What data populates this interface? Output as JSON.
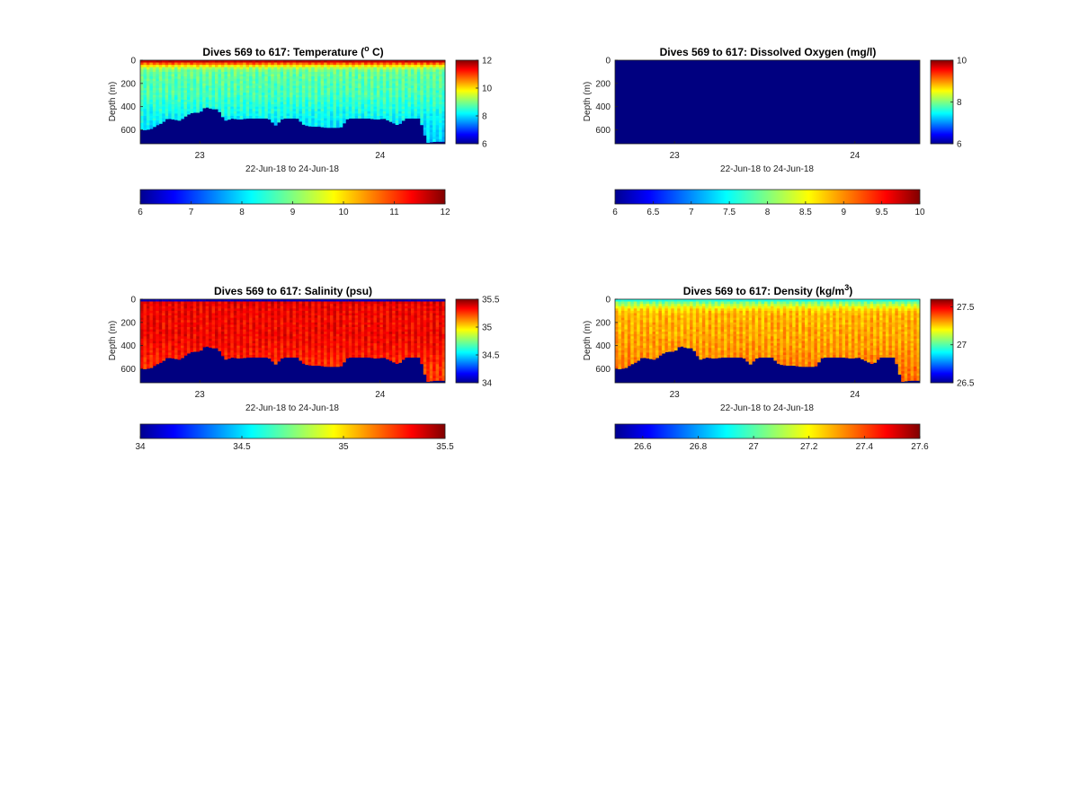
{
  "chart_data": [
    {
      "type": "heatmap",
      "title": "Dives 569 to 617: Temperature (° C)",
      "title_parts": {
        "pre": "Dives 569 to 617: Temperature (",
        "sup": "o",
        "post": " C)"
      },
      "xlabel": "22-Jun-18 to 24-Jun-18",
      "ylabel": "Depth (m)",
      "x_ticks": [
        "23",
        "24"
      ],
      "x_tick_days": [
        23,
        24
      ],
      "x_range_days": [
        22.67,
        24.36
      ],
      "y_ticks": [
        "0",
        "200",
        "400",
        "600"
      ],
      "y_tick_values": [
        0,
        200,
        400,
        600
      ],
      "ylim": [
        0,
        720
      ],
      "y_direction": "reverse",
      "side_colorbar": {
        "ticks": [
          "12",
          "10",
          "8",
          "6"
        ],
        "values": [
          12,
          10,
          8,
          6
        ],
        "range": [
          6,
          12
        ]
      },
      "bottom_colorbar": {
        "ticks": [
          "6",
          "7",
          "8",
          "9",
          "10",
          "11",
          "12"
        ],
        "values": [
          6,
          7,
          8,
          9,
          10,
          11,
          12
        ],
        "range": [
          6,
          12
        ]
      },
      "colormap": "jet",
      "profile": {
        "depths": [
          0,
          20,
          40,
          60,
          80,
          100,
          200,
          300,
          400,
          500,
          600,
          720
        ],
        "values": [
          11.6,
          11.0,
          10.2,
          9.4,
          9.0,
          8.8,
          8.7,
          8.6,
          8.4,
          8.2,
          8.0,
          7.9
        ]
      },
      "surface_value": 11.6,
      "bottom_fill_value": 6
    },
    {
      "type": "heatmap",
      "title": "Dives 569 to 617: Dissolved Oxygen (mg/l)",
      "xlabel": "22-Jun-18 to 24-Jun-18",
      "ylabel": "Depth (m)",
      "x_ticks": [
        "23",
        "24"
      ],
      "x_tick_days": [
        23,
        24
      ],
      "x_range_days": [
        22.67,
        24.36
      ],
      "y_ticks": [
        "0",
        "200",
        "400",
        "600"
      ],
      "y_tick_values": [
        0,
        200,
        400,
        600
      ],
      "ylim": [
        0,
        720
      ],
      "y_direction": "reverse",
      "side_colorbar": {
        "ticks": [
          "10",
          "8",
          "6"
        ],
        "values": [
          10,
          8,
          6
        ],
        "range": [
          6,
          10
        ]
      },
      "bottom_colorbar": {
        "ticks": [
          "6",
          "6.5",
          "7",
          "7.5",
          "8",
          "8.5",
          "9",
          "9.5",
          "10"
        ],
        "values": [
          6,
          6.5,
          7,
          7.5,
          8,
          8.5,
          9,
          9.5,
          10
        ],
        "range": [
          6,
          10
        ]
      },
      "colormap": "jet",
      "uniform_value": 6
    },
    {
      "type": "heatmap",
      "title": "Dives 569 to 617: Salinity (psu)",
      "xlabel": "22-Jun-18 to 24-Jun-18",
      "ylabel": "Depth (m)",
      "x_ticks": [
        "23",
        "24"
      ],
      "x_tick_days": [
        23,
        24
      ],
      "x_range_days": [
        22.67,
        24.36
      ],
      "y_ticks": [
        "0",
        "200",
        "400",
        "600"
      ],
      "y_tick_values": [
        0,
        200,
        400,
        600
      ],
      "ylim": [
        0,
        720
      ],
      "y_direction": "reverse",
      "side_colorbar": {
        "ticks": [
          "35.5",
          "35",
          "34.5",
          "34"
        ],
        "values": [
          35.5,
          35,
          34.5,
          34
        ],
        "range": [
          34,
          35.5
        ]
      },
      "bottom_colorbar": {
        "ticks": [
          "34",
          "34.5",
          "35",
          "35.5"
        ],
        "values": [
          34,
          34.5,
          35,
          35.5
        ],
        "range": [
          34,
          35.5
        ]
      },
      "colormap": "jet",
      "profile": {
        "depths": [
          0,
          30,
          60,
          100,
          200,
          300,
          400,
          500,
          600,
          720
        ],
        "values": [
          35.32,
          35.34,
          35.32,
          35.31,
          35.3,
          35.31,
          35.29,
          35.26,
          35.22,
          35.2
        ]
      },
      "surface_value": 34.1,
      "bottom_fill_value": 34
    },
    {
      "type": "heatmap",
      "title": "Dives 569 to 617: Density (kg/m³)",
      "title_parts": {
        "pre": "Dives 569 to 617: Density (kg/m",
        "sup": "3",
        "post": ")"
      },
      "xlabel": "22-Jun-18 to 24-Jun-18",
      "ylabel": "Depth (m)",
      "x_ticks": [
        "23",
        "24"
      ],
      "x_tick_days": [
        23,
        24
      ],
      "x_range_days": [
        22.67,
        24.36
      ],
      "y_ticks": [
        "0",
        "200",
        "400",
        "600"
      ],
      "y_tick_values": [
        0,
        200,
        400,
        600
      ],
      "ylim": [
        0,
        720
      ],
      "y_direction": "reverse",
      "side_colorbar": {
        "ticks": [
          "27.5",
          "27",
          "26.5"
        ],
        "values": [
          27.5,
          27,
          26.5
        ],
        "range": [
          26.5,
          27.6
        ]
      },
      "bottom_colorbar": {
        "ticks": [
          "26.6",
          "26.8",
          "27",
          "27.2",
          "27.4",
          "27.6"
        ],
        "values": [
          26.6,
          26.8,
          27,
          27.2,
          27.4,
          27.6
        ],
        "range": [
          26.5,
          27.6
        ]
      },
      "colormap": "jet",
      "profile": {
        "depths": [
          0,
          20,
          50,
          80,
          120,
          200,
          300,
          400,
          500,
          600,
          720
        ],
        "values": [
          26.95,
          27.0,
          27.1,
          27.2,
          27.25,
          27.26,
          27.27,
          27.28,
          27.3,
          27.32,
          27.33
        ]
      },
      "surface_value": 26.95,
      "bottom_fill_value": 26.5
    }
  ],
  "seafloor": {
    "days": [
      22.67,
      22.7,
      22.73,
      22.76,
      22.79,
      22.82,
      22.86,
      22.89,
      22.93,
      22.96,
      23.0,
      23.03,
      23.07,
      23.1,
      23.14,
      23.18,
      23.22,
      23.26,
      23.3,
      23.34,
      23.38,
      23.42,
      23.46,
      23.5,
      23.54,
      23.58,
      23.62,
      23.66,
      23.7,
      23.74,
      23.78,
      23.82,
      23.86,
      23.9,
      23.94,
      23.98,
      24.02,
      24.06,
      24.1,
      24.14,
      24.18,
      24.22,
      24.26,
      24.3,
      24.36
    ],
    "depths": [
      600,
      600,
      590,
      560,
      540,
      500,
      510,
      520,
      470,
      450,
      450,
      400,
      420,
      420,
      520,
      500,
      510,
      500,
      500,
      500,
      500,
      560,
      500,
      500,
      500,
      560,
      570,
      570,
      580,
      580,
      580,
      500,
      500,
      500,
      500,
      510,
      500,
      530,
      560,
      500,
      500,
      500,
      710,
      700,
      700
    ]
  }
}
